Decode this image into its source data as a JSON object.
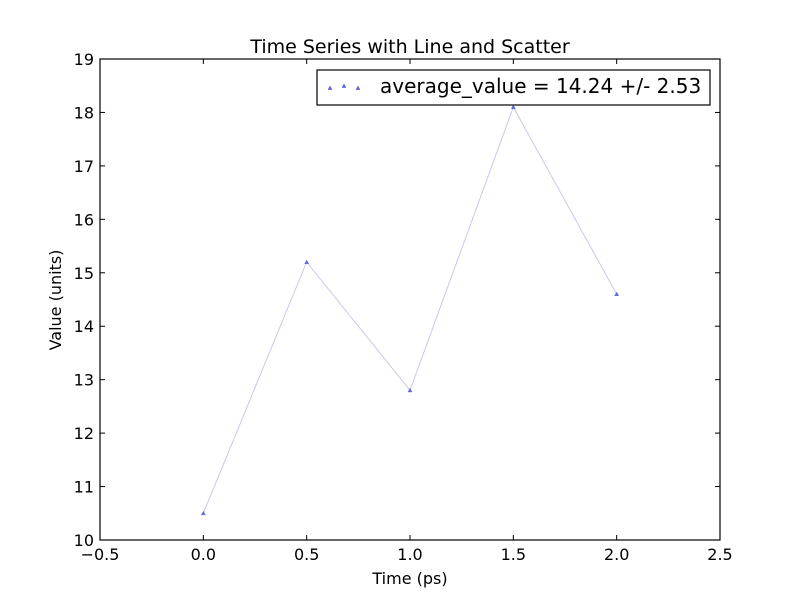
{
  "chart_data": {
    "type": "line",
    "title": "Time Series with Line and Scatter",
    "xlabel": "Time (ps)",
    "ylabel": "Value (units)",
    "xlim": [
      -0.5,
      2.5
    ],
    "ylim": [
      10,
      19
    ],
    "xticks": [
      -0.5,
      0.0,
      0.5,
      1.0,
      1.5,
      2.0,
      2.5
    ],
    "xtick_labels": [
      "−0.5",
      "0.0",
      "0.5",
      "1.0",
      "1.5",
      "2.0",
      "2.5"
    ],
    "yticks": [
      10,
      11,
      12,
      13,
      14,
      15,
      16,
      17,
      18,
      19
    ],
    "ytick_labels": [
      "10",
      "11",
      "12",
      "13",
      "14",
      "15",
      "16",
      "17",
      "18",
      "19"
    ],
    "grid": false,
    "legend_position": "top-right",
    "series": [
      {
        "name": "average_value = 14.24 +/- 2.53",
        "x": [
          0.0,
          0.5,
          1.0,
          1.5,
          2.0
        ],
        "y": [
          10.5,
          15.2,
          12.8,
          18.1,
          14.6
        ],
        "line_color": "#c8c8ee",
        "marker": "triangle",
        "marker_color": "#6666dd"
      }
    ]
  }
}
